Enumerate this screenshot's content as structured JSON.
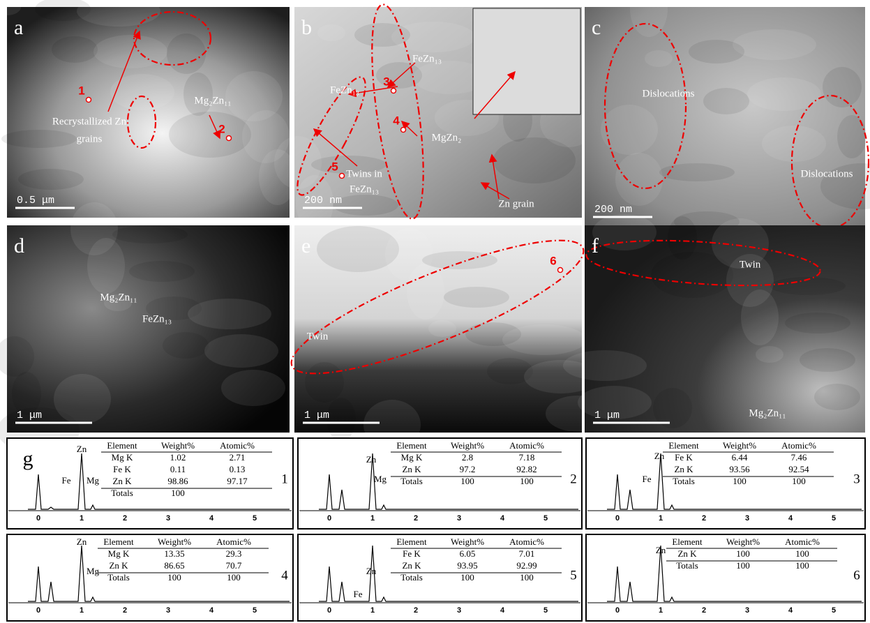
{
  "panels": [
    {
      "label": "a",
      "annotations": [
        "Recrystallized Zn",
        "grains",
        "Mg₂Zn₁₁"
      ],
      "spots": [
        "1",
        "2"
      ],
      "scale_bar": "0.5 μm"
    },
    {
      "label": "b",
      "annotations": [
        "FeZn₁₃",
        "FeZn₁₃",
        "MgZn₂",
        "Twins in",
        "FeZn₁₃",
        "Zn grain"
      ],
      "spots": [
        "3",
        "4",
        "5"
      ],
      "scale_bar": "200 nm"
    },
    {
      "label": "c",
      "annotations": [
        "Dislocations",
        "Dislocations"
      ],
      "spots": [],
      "scale_bar": "200 nm"
    },
    {
      "label": "d",
      "annotations": [
        "Mg₂Zn₁₁",
        "FeZn₁₃"
      ],
      "spots": [],
      "scale_bar": "1 μm"
    },
    {
      "label": "e",
      "annotations": [
        "Twin"
      ],
      "spots": [
        "6"
      ],
      "scale_bar": "1 μm"
    },
    {
      "label": "f",
      "annotations": [
        "Twin",
        "Mg₂Zn₁₁"
      ],
      "spots": [],
      "scale_bar": "1 μm"
    }
  ],
  "eds": {
    "label": "g",
    "axis": [
      "0",
      "1",
      "2",
      "3",
      "4",
      "5"
    ],
    "columns": [
      "Element",
      "Weight%",
      "Atomic%"
    ],
    "panels": [
      {
        "spot": "1",
        "peaks": [
          "Zn",
          "Fe",
          "Mg"
        ],
        "rows": [
          [
            "Mg K",
            "1.02",
            "2.71"
          ],
          [
            "Fe K",
            "0.11",
            "0.13"
          ],
          [
            "Zn K",
            "98.86",
            "97.17"
          ],
          [
            "Totals",
            "100"
          ]
        ]
      },
      {
        "spot": "2",
        "peaks": [
          "Zn",
          "Mg"
        ],
        "rows": [
          [
            "Mg K",
            "2.8",
            "7.18"
          ],
          [
            "Zn K",
            "97.2",
            "92.82"
          ],
          [
            "Totals",
            "100",
            "100"
          ]
        ]
      },
      {
        "spot": "3",
        "peaks": [
          "Zn",
          "Fe"
        ],
        "rows": [
          [
            "Fe K",
            "6.44",
            "7.46"
          ],
          [
            "Zn K",
            "93.56",
            "92.54"
          ],
          [
            "Totals",
            "100",
            "100"
          ]
        ]
      },
      {
        "spot": "4",
        "peaks": [
          "Zn",
          "Mg"
        ],
        "rows": [
          [
            "Mg K",
            "13.35",
            "29.3"
          ],
          [
            "Zn K",
            "86.65",
            "70.7"
          ],
          [
            "Totals",
            "100",
            "100"
          ]
        ]
      },
      {
        "spot": "5",
        "peaks": [
          "Zn",
          "Fe"
        ],
        "rows": [
          [
            "Fe K",
            "6.05",
            "7.01"
          ],
          [
            "Zn K",
            "93.95",
            "92.99"
          ],
          [
            "Totals",
            "100",
            "100"
          ]
        ]
      },
      {
        "spot": "6",
        "peaks": [
          "Zn"
        ],
        "rows": [
          [
            "Zn K",
            "100",
            "100"
          ],
          [
            "Totals",
            "100",
            "100"
          ]
        ]
      }
    ]
  }
}
